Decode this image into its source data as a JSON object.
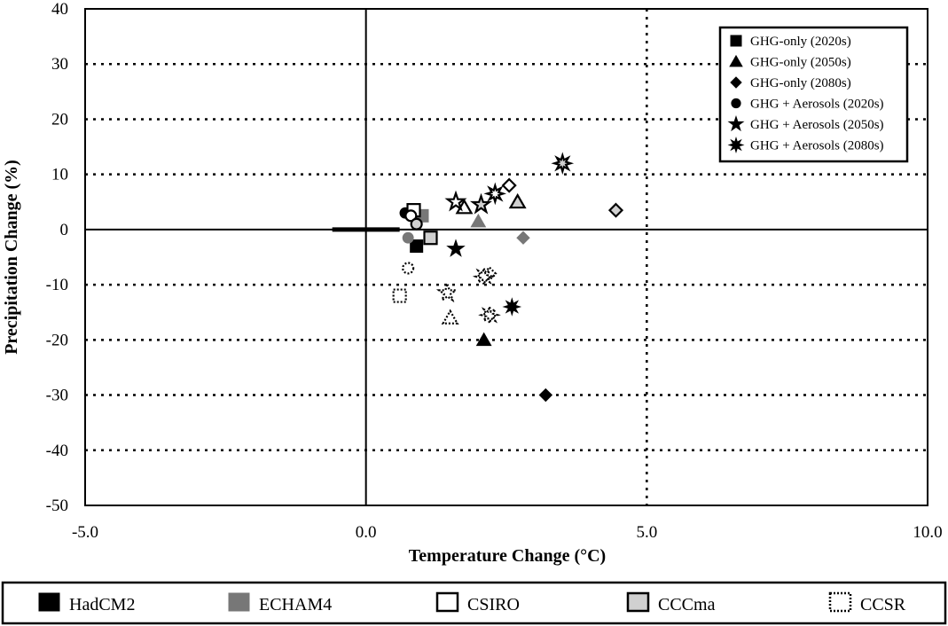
{
  "chart_data": {
    "type": "scatter",
    "xlabel": "Temperature Change (°C)",
    "ylabel": "Precipitation Change (%)",
    "xlim": [
      -5,
      10
    ],
    "ylim": [
      -50,
      40
    ],
    "x_ticks": [
      "-5.0",
      "0.0",
      "5.0",
      "10.0"
    ],
    "y_ticks": [
      "40",
      "30",
      "20",
      "10",
      "0",
      "-10",
      "-20",
      "-30",
      "-40",
      "-50"
    ],
    "grid": "dotted",
    "legend_position": "top-right",
    "scenario_legend": [
      {
        "label": "GHG-only (2020s)",
        "marker": "square"
      },
      {
        "label": "GHG-only (2050s)",
        "marker": "triangle"
      },
      {
        "label": "GHG-only (2080s)",
        "marker": "diamond"
      },
      {
        "label": "GHG + Aerosols (2020s)",
        "marker": "circle"
      },
      {
        "label": "GHG + Aerosols (2050s)",
        "marker": "star"
      },
      {
        "label": "GHG + Aerosols (2080s)",
        "marker": "asterisk"
      }
    ],
    "model_legend": [
      {
        "label": "HadCM2",
        "style": "hadcm2"
      },
      {
        "label": "ECHAM4",
        "style": "echam4"
      },
      {
        "label": "CSIRO",
        "style": "csiro"
      },
      {
        "label": "CCCma",
        "style": "cccma"
      },
      {
        "label": "CCSR",
        "style": "ccsr"
      }
    ],
    "points": [
      {
        "model": "hadcm2",
        "marker": "square",
        "x": 0.9,
        "y": -3
      },
      {
        "model": "hadcm2",
        "marker": "triangle",
        "x": 2.1,
        "y": -20
      },
      {
        "model": "hadcm2",
        "marker": "diamond",
        "x": 3.2,
        "y": -30
      },
      {
        "model": "hadcm2",
        "marker": "circle",
        "x": 0.7,
        "y": 3
      },
      {
        "model": "hadcm2",
        "marker": "star",
        "x": 1.6,
        "y": -3.5
      },
      {
        "model": "hadcm2",
        "marker": "asterisk",
        "x": 2.6,
        "y": -14
      },
      {
        "model": "echam4",
        "marker": "square",
        "x": 1.0,
        "y": 2.5
      },
      {
        "model": "echam4",
        "marker": "triangle",
        "x": 2.0,
        "y": 1.5
      },
      {
        "model": "echam4",
        "marker": "diamond",
        "x": 2.8,
        "y": -1.5
      },
      {
        "model": "echam4",
        "marker": "circle",
        "x": 0.75,
        "y": -1.5
      },
      {
        "model": "csiro",
        "marker": "square",
        "x": 0.85,
        "y": 3.5
      },
      {
        "model": "csiro",
        "marker": "triangle",
        "x": 1.75,
        "y": 4
      },
      {
        "model": "csiro",
        "marker": "diamond",
        "x": 2.55,
        "y": 8
      },
      {
        "model": "csiro",
        "marker": "circle",
        "x": 0.8,
        "y": 2.5
      },
      {
        "model": "csiro",
        "marker": "star",
        "x": 1.6,
        "y": 5
      },
      {
        "model": "csiro",
        "marker": "asterisk",
        "x": 2.3,
        "y": 6.5
      },
      {
        "model": "cccma",
        "marker": "square",
        "x": 1.15,
        "y": -1.5
      },
      {
        "model": "cccma",
        "marker": "triangle",
        "x": 2.7,
        "y": 5
      },
      {
        "model": "cccma",
        "marker": "diamond",
        "x": 4.45,
        "y": 3.5
      },
      {
        "model": "cccma",
        "marker": "circle",
        "x": 0.9,
        "y": 1
      },
      {
        "model": "cccma",
        "marker": "star",
        "x": 2.05,
        "y": 4.5
      },
      {
        "model": "cccma",
        "marker": "asterisk",
        "x": 3.5,
        "y": 12
      },
      {
        "model": "ccsr",
        "marker": "square",
        "x": 0.6,
        "y": -12
      },
      {
        "model": "ccsr",
        "marker": "triangle",
        "x": 1.5,
        "y": -16
      },
      {
        "model": "ccsr",
        "marker": "diamond",
        "x": 2.2,
        "y": -8
      },
      {
        "model": "ccsr",
        "marker": "circle",
        "x": 0.75,
        "y": -7
      },
      {
        "model": "ccsr",
        "marker": "star",
        "x": 1.45,
        "y": -11.5
      },
      {
        "model": "ccsr",
        "marker": "asterisk",
        "x": 2.1,
        "y": -8.5
      },
      {
        "model": "ccsr",
        "marker": "asterisk",
        "x": 2.2,
        "y": -15.5
      }
    ]
  },
  "colors": {
    "hadcm2": "#000000",
    "echam4": "#777777",
    "csiro": "#ffffff",
    "cccma": "#d0d0d0",
    "ccsr": "#ffffff"
  }
}
